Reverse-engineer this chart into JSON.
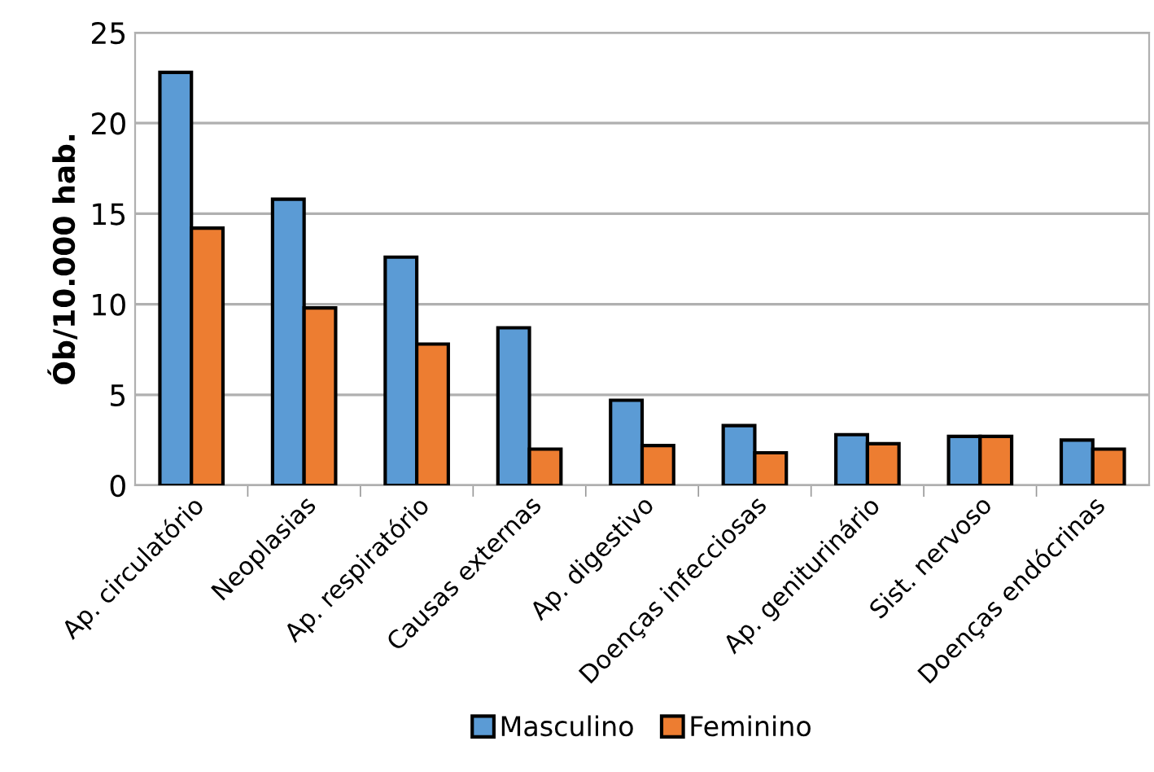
{
  "chart_data": {
    "type": "bar",
    "ylabel": "Ób/10.000 hab.",
    "categories": [
      "Ap. circulatório",
      "Neoplasias",
      "Ap. respiratório",
      "Causas externas",
      "Ap. digestivo",
      "Doenças infecciosas",
      "Ap. geniturinário",
      "Sist. nervoso",
      "Doenças endócrinas"
    ],
    "series": [
      {
        "name": "Masculino",
        "color": "#5b9bd5",
        "values": [
          22.8,
          15.8,
          12.6,
          8.7,
          4.7,
          3.3,
          2.8,
          2.7,
          2.5
        ]
      },
      {
        "name": "Feminino",
        "color": "#ed7d31",
        "values": [
          14.2,
          9.8,
          7.8,
          2.0,
          2.2,
          1.8,
          2.3,
          2.7,
          2.0
        ]
      }
    ],
    "ylim": [
      0,
      25
    ],
    "yticks": [
      0,
      5,
      10,
      15,
      20,
      25
    ],
    "grid": "y",
    "legend": "bottom"
  }
}
